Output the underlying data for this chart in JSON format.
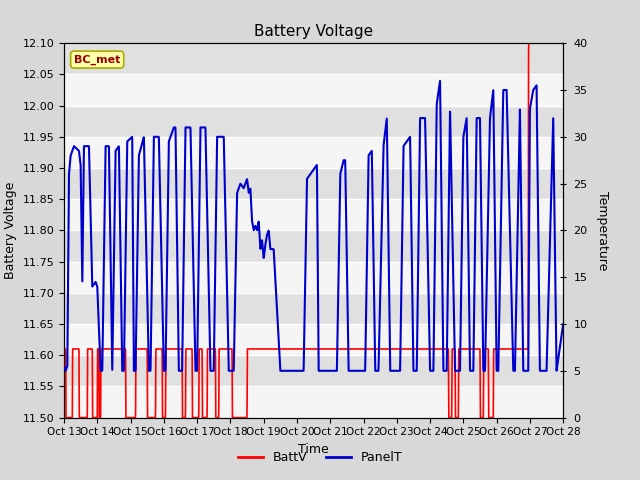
{
  "title": "Battery Voltage",
  "xlabel": "Time",
  "ylabel_left": "Battery Voltage",
  "ylabel_right": "Temperature",
  "annotation": "BC_met",
  "ylim_left": [
    11.5,
    12.1
  ],
  "ylim_right": [
    0,
    40
  ],
  "yticks_left": [
    11.5,
    11.55,
    11.6,
    11.65,
    11.7,
    11.75,
    11.8,
    11.85,
    11.9,
    11.95,
    12.0,
    12.05,
    12.1
  ],
  "yticks_right": [
    0,
    5,
    10,
    15,
    20,
    25,
    30,
    35,
    40
  ],
  "xtick_labels": [
    "Oct 13",
    "Oct 14",
    "Oct 15",
    "Oct 16",
    "Oct 17",
    "Oct 18",
    "Oct 19",
    "Oct 20",
    "Oct 21",
    "Oct 22",
    "Oct 23",
    "Oct 24",
    "Oct 25",
    "Oct 26",
    "Oct 27",
    "Oct 28"
  ],
  "batt_color": "#FF0000",
  "panel_color": "#0000CC",
  "bg_color": "#D8D8D8",
  "inner_bg_top": "#E8E8E8",
  "inner_bg_bot": "#F8F8F8",
  "annotation_bg": "#FFFFAA",
  "annotation_border": "#AAAA00",
  "annotation_text_color": "#990000",
  "batt_keypoints": [
    [
      13.0,
      11.61
    ],
    [
      13.05,
      11.61
    ],
    [
      13.06,
      11.5
    ],
    [
      13.25,
      11.5
    ],
    [
      13.26,
      11.61
    ],
    [
      13.45,
      11.61
    ],
    [
      13.46,
      11.5
    ],
    [
      13.7,
      11.5
    ],
    [
      13.71,
      11.61
    ],
    [
      13.85,
      11.61
    ],
    [
      13.86,
      11.5
    ],
    [
      14.0,
      11.5
    ],
    [
      14.01,
      11.61
    ],
    [
      14.05,
      11.61
    ],
    [
      14.06,
      11.5
    ],
    [
      14.1,
      11.5
    ],
    [
      14.11,
      11.61
    ],
    [
      14.85,
      11.61
    ],
    [
      14.86,
      11.5
    ],
    [
      15.15,
      11.5
    ],
    [
      15.16,
      11.61
    ],
    [
      15.5,
      11.61
    ],
    [
      15.51,
      11.5
    ],
    [
      15.75,
      11.5
    ],
    [
      15.76,
      11.61
    ],
    [
      15.95,
      11.61
    ],
    [
      15.96,
      11.5
    ],
    [
      16.05,
      11.5
    ],
    [
      16.06,
      11.61
    ],
    [
      16.55,
      11.61
    ],
    [
      16.56,
      11.5
    ],
    [
      16.65,
      11.5
    ],
    [
      16.66,
      11.61
    ],
    [
      16.85,
      11.61
    ],
    [
      16.86,
      11.5
    ],
    [
      17.05,
      11.5
    ],
    [
      17.06,
      11.61
    ],
    [
      17.15,
      11.61
    ],
    [
      17.16,
      11.5
    ],
    [
      17.3,
      11.5
    ],
    [
      17.31,
      11.61
    ],
    [
      17.55,
      11.61
    ],
    [
      17.56,
      11.5
    ],
    [
      17.65,
      11.5
    ],
    [
      17.66,
      11.61
    ],
    [
      18.05,
      11.61
    ],
    [
      18.06,
      11.5
    ],
    [
      18.5,
      11.5
    ],
    [
      18.51,
      11.61
    ],
    [
      24.55,
      11.61
    ],
    [
      24.56,
      11.5
    ],
    [
      24.65,
      11.5
    ],
    [
      24.66,
      11.61
    ],
    [
      24.75,
      11.61
    ],
    [
      24.76,
      11.5
    ],
    [
      24.85,
      11.5
    ],
    [
      24.86,
      11.61
    ],
    [
      25.5,
      11.61
    ],
    [
      25.51,
      11.5
    ],
    [
      25.6,
      11.5
    ],
    [
      25.61,
      11.61
    ],
    [
      25.75,
      11.61
    ],
    [
      25.76,
      11.5
    ],
    [
      25.9,
      11.5
    ],
    [
      25.91,
      11.61
    ],
    [
      26.95,
      11.61
    ],
    [
      26.96,
      12.1
    ],
    [
      28.0,
      12.1
    ]
  ],
  "panel_keypoints": [
    [
      13.0,
      5.5
    ],
    [
      13.05,
      5.0
    ],
    [
      13.1,
      5.5
    ],
    [
      13.15,
      26.0
    ],
    [
      13.2,
      28.0
    ],
    [
      13.3,
      29.0
    ],
    [
      13.45,
      28.5
    ],
    [
      13.5,
      27.0
    ],
    [
      13.55,
      14.5
    ],
    [
      13.6,
      29.0
    ],
    [
      13.75,
      29.0
    ],
    [
      13.85,
      14.0
    ],
    [
      13.95,
      14.5
    ],
    [
      14.0,
      14.0
    ],
    [
      14.1,
      5.0
    ],
    [
      14.15,
      5.0
    ],
    [
      14.25,
      29.0
    ],
    [
      14.35,
      29.0
    ],
    [
      14.45,
      5.0
    ],
    [
      14.55,
      28.5
    ],
    [
      14.65,
      29.0
    ],
    [
      14.75,
      5.0
    ],
    [
      14.8,
      5.0
    ],
    [
      14.9,
      29.5
    ],
    [
      15.05,
      30.0
    ],
    [
      15.1,
      5.0
    ],
    [
      15.15,
      5.0
    ],
    [
      15.25,
      28.0
    ],
    [
      15.4,
      30.0
    ],
    [
      15.55,
      5.0
    ],
    [
      15.6,
      5.0
    ],
    [
      15.7,
      30.0
    ],
    [
      15.85,
      30.0
    ],
    [
      16.0,
      5.0
    ],
    [
      16.05,
      5.0
    ],
    [
      16.15,
      29.5
    ],
    [
      16.3,
      31.0
    ],
    [
      16.35,
      31.0
    ],
    [
      16.45,
      5.0
    ],
    [
      16.55,
      5.0
    ],
    [
      16.65,
      31.0
    ],
    [
      16.8,
      31.0
    ],
    [
      16.95,
      5.0
    ],
    [
      17.0,
      5.0
    ],
    [
      17.1,
      31.0
    ],
    [
      17.25,
      31.0
    ],
    [
      17.4,
      5.0
    ],
    [
      17.5,
      5.0
    ],
    [
      17.6,
      30.0
    ],
    [
      17.8,
      30.0
    ],
    [
      17.95,
      5.0
    ],
    [
      18.0,
      5.0
    ],
    [
      18.1,
      5.0
    ],
    [
      18.2,
      24.0
    ],
    [
      18.3,
      25.0
    ],
    [
      18.4,
      24.5
    ],
    [
      18.5,
      25.5
    ],
    [
      18.55,
      24.0
    ],
    [
      18.6,
      24.5
    ],
    [
      18.65,
      21.0
    ],
    [
      18.7,
      20.0
    ],
    [
      18.75,
      20.5
    ],
    [
      18.8,
      20.0
    ],
    [
      18.85,
      21.0
    ],
    [
      18.9,
      18.0
    ],
    [
      18.95,
      19.0
    ],
    [
      19.0,
      17.0
    ],
    [
      19.05,
      18.5
    ],
    [
      19.1,
      19.5
    ],
    [
      19.15,
      20.0
    ],
    [
      19.2,
      18.0
    ],
    [
      19.3,
      18.0
    ],
    [
      19.5,
      5.0
    ],
    [
      19.6,
      5.0
    ],
    [
      20.0,
      5.0
    ],
    [
      20.1,
      5.0
    ],
    [
      20.2,
      5.0
    ],
    [
      20.3,
      25.5
    ],
    [
      20.4,
      26.0
    ],
    [
      20.5,
      26.5
    ],
    [
      20.6,
      27.0
    ],
    [
      20.65,
      5.0
    ],
    [
      20.7,
      5.0
    ],
    [
      21.0,
      5.0
    ],
    [
      21.1,
      5.0
    ],
    [
      21.2,
      5.0
    ],
    [
      21.3,
      26.0
    ],
    [
      21.4,
      27.5
    ],
    [
      21.45,
      27.5
    ],
    [
      21.55,
      5.0
    ],
    [
      21.6,
      5.0
    ],
    [
      21.8,
      5.0
    ],
    [
      22.0,
      5.0
    ],
    [
      22.05,
      5.0
    ],
    [
      22.15,
      28.0
    ],
    [
      22.25,
      28.5
    ],
    [
      22.35,
      5.0
    ],
    [
      22.45,
      5.0
    ],
    [
      22.6,
      29.0
    ],
    [
      22.7,
      32.0
    ],
    [
      22.8,
      5.0
    ],
    [
      22.9,
      5.0
    ],
    [
      23.0,
      5.0
    ],
    [
      23.1,
      5.0
    ],
    [
      23.2,
      29.0
    ],
    [
      23.4,
      30.0
    ],
    [
      23.5,
      5.0
    ],
    [
      23.6,
      5.0
    ],
    [
      23.7,
      32.0
    ],
    [
      23.85,
      32.0
    ],
    [
      24.0,
      5.0
    ],
    [
      24.1,
      5.0
    ],
    [
      24.2,
      33.5
    ],
    [
      24.3,
      36.0
    ],
    [
      24.4,
      5.0
    ],
    [
      24.5,
      5.0
    ],
    [
      24.6,
      33.0
    ],
    [
      24.75,
      5.0
    ],
    [
      24.8,
      5.0
    ],
    [
      24.9,
      5.0
    ],
    [
      25.0,
      30.0
    ],
    [
      25.1,
      32.0
    ],
    [
      25.2,
      5.0
    ],
    [
      25.3,
      5.0
    ],
    [
      25.4,
      32.0
    ],
    [
      25.5,
      32.0
    ],
    [
      25.6,
      5.0
    ],
    [
      25.65,
      5.0
    ],
    [
      25.8,
      32.0
    ],
    [
      25.9,
      35.0
    ],
    [
      26.0,
      5.0
    ],
    [
      26.05,
      5.0
    ],
    [
      26.2,
      35.0
    ],
    [
      26.3,
      35.0
    ],
    [
      26.5,
      5.0
    ],
    [
      26.55,
      5.0
    ],
    [
      26.7,
      33.0
    ],
    [
      26.8,
      5.0
    ],
    [
      26.85,
      5.0
    ],
    [
      26.95,
      5.0
    ],
    [
      27.0,
      33.0
    ],
    [
      27.1,
      35.0
    ],
    [
      27.2,
      35.5
    ],
    [
      27.3,
      5.0
    ],
    [
      27.5,
      5.0
    ],
    [
      27.7,
      32.0
    ],
    [
      27.8,
      5.0
    ],
    [
      28.0,
      10.0
    ]
  ]
}
